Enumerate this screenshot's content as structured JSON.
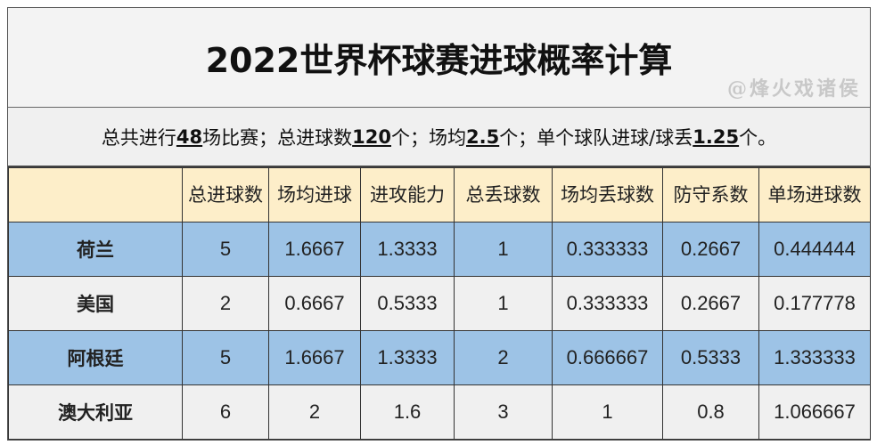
{
  "title": "2022世界杯球赛进球概率计算",
  "summary": {
    "p1": "总共进行",
    "v1": "48",
    "p2": "场比赛；总进球数",
    "v2": "120",
    "p3": "个；场均",
    "v3": "2.5",
    "p4": "个；单个球队进球/球丢",
    "v4": "1.25",
    "p5": "个。"
  },
  "columns": [
    "",
    "总进球数",
    "场均进球",
    "进攻能力",
    "总丢球数",
    "场均丢球数",
    "防守系数",
    "单场进球数"
  ],
  "rows": [
    {
      "team": "荷兰",
      "values": [
        "5",
        "1.6667",
        "1.3333",
        "1",
        "0.333333",
        "0.2667",
        "0.444444"
      ]
    },
    {
      "team": "美国",
      "values": [
        "2",
        "0.6667",
        "0.5333",
        "1",
        "0.333333",
        "0.2667",
        "0.177778"
      ]
    },
    {
      "team": "阿根廷",
      "values": [
        "5",
        "1.6667",
        "1.3333",
        "2",
        "0.666667",
        "0.5333",
        "1.333333"
      ]
    },
    {
      "team": "澳大利亚",
      "values": [
        "6",
        "2",
        "1.6",
        "3",
        "1",
        "0.8",
        "1.066667"
      ]
    }
  ],
  "colors": {
    "header": "#fdeec9",
    "blue_row": "#9dc3e6",
    "grey_row": "#f0f0f0"
  },
  "watermark": "@烽火戏诸侯"
}
